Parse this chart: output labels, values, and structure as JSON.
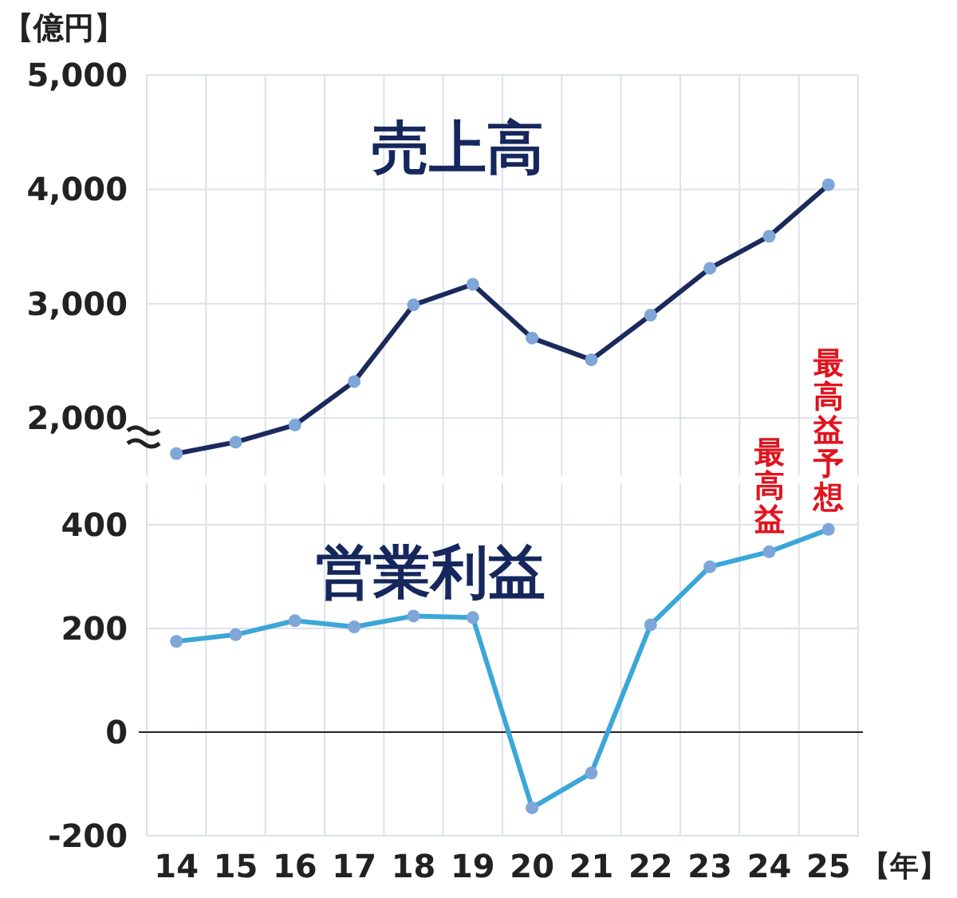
{
  "chart_data": [
    {
      "type": "line",
      "categories": [
        "14",
        "15",
        "16",
        "17",
        "18",
        "19",
        "20",
        "21",
        "22",
        "23",
        "24",
        "25"
      ],
      "series": [
        {
          "name": "売上高",
          "color": "#1b2a5c",
          "values": [
            1690,
            1790,
            1940,
            2320,
            2990,
            3170,
            2700,
            2510,
            2900,
            3310,
            3590,
            4040
          ]
        }
      ],
      "ylim": [
        1500,
        5000
      ],
      "yticks": [
        {
          "value": 2000,
          "label": "2,000"
        },
        {
          "value": 3000,
          "label": "3,000"
        },
        {
          "value": 4000,
          "label": "4,000"
        },
        {
          "value": 5000,
          "label": "5,000"
        }
      ],
      "ylabel": "【億円】",
      "grid": true,
      "marker": "circle",
      "tick_labels": "y"
    },
    {
      "type": "line",
      "categories": [
        "14",
        "15",
        "16",
        "17",
        "18",
        "19",
        "20",
        "21",
        "22",
        "23",
        "24",
        "25"
      ],
      "series": [
        {
          "name": "営業利益",
          "color": "#3ba7d8",
          "values": [
            175,
            188,
            215,
            203,
            224,
            221,
            -146,
            -79,
            207,
            319,
            348,
            391
          ]
        }
      ],
      "ylim": [
        -200,
        480
      ],
      "yticks": [
        -200,
        0,
        200,
        400
      ],
      "xlabel": "【年】",
      "grid": true,
      "marker": "circle",
      "ref_lines": [
        {
          "axis": "y",
          "value": 0,
          "color": "#222222"
        }
      ],
      "annotations": [
        {
          "text": "最高益",
          "x": "24",
          "y": 348
        },
        {
          "text": "最高益予想",
          "x": "25",
          "y": 391
        }
      ]
    }
  ]
}
